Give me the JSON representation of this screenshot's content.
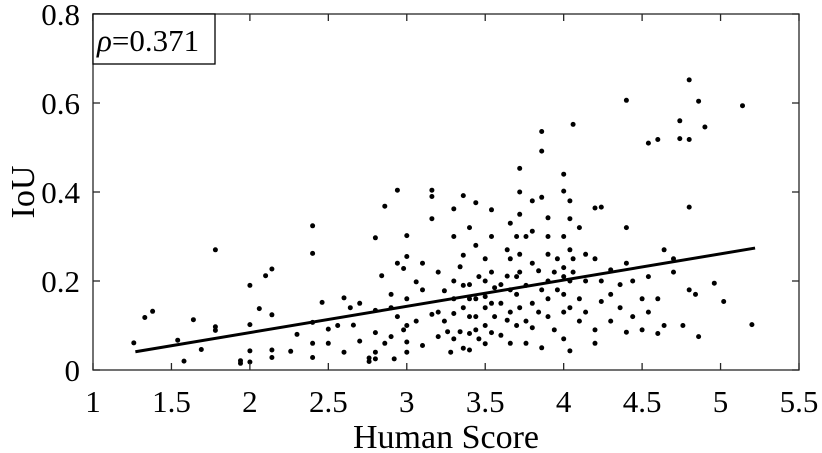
{
  "chart_data": {
    "type": "scatter",
    "title": "",
    "xlabel": "Human Score",
    "ylabel": "IoU",
    "xlim": [
      1,
      5.5
    ],
    "ylim": [
      0,
      0.8
    ],
    "xticks": [
      "1",
      "1.5",
      "2",
      "2.5",
      "3",
      "3.5",
      "4",
      "4.5",
      "5",
      "5.5"
    ],
    "yticks": [
      "0",
      "0.2",
      "0.4",
      "0.6",
      "0.8"
    ],
    "grid": false,
    "annotation": {
      "symbol": "ρ",
      "text": "=0.371"
    },
    "fit_line": {
      "x": [
        1.27,
        5.22
      ],
      "y": [
        0.041,
        0.274
      ]
    },
    "colors": {
      "points": "#000000",
      "line": "#000000"
    },
    "points": [
      [
        1.26,
        0.061
      ],
      [
        1.33,
        0.118
      ],
      [
        1.38,
        0.132
      ],
      [
        1.54,
        0.067
      ],
      [
        1.58,
        0.02
      ],
      [
        1.64,
        0.113
      ],
      [
        1.69,
        0.046
      ],
      [
        1.78,
        0.27
      ],
      [
        1.78,
        0.097
      ],
      [
        1.78,
        0.089
      ],
      [
        1.94,
        0.021
      ],
      [
        1.94,
        0.015
      ],
      [
        2.0,
        0.19
      ],
      [
        2.0,
        0.102
      ],
      [
        2.0,
        0.043
      ],
      [
        2.0,
        0.018
      ],
      [
        2.06,
        0.138
      ],
      [
        2.1,
        0.212
      ],
      [
        2.14,
        0.227
      ],
      [
        2.14,
        0.124
      ],
      [
        2.14,
        0.045
      ],
      [
        2.14,
        0.028
      ],
      [
        2.26,
        0.042
      ],
      [
        2.3,
        0.08
      ],
      [
        2.4,
        0.324
      ],
      [
        2.4,
        0.262
      ],
      [
        2.4,
        0.107
      ],
      [
        2.4,
        0.06
      ],
      [
        2.4,
        0.028
      ],
      [
        2.46,
        0.152
      ],
      [
        2.5,
        0.092
      ],
      [
        2.5,
        0.06
      ],
      [
        2.56,
        0.1
      ],
      [
        2.6,
        0.162
      ],
      [
        2.6,
        0.04
      ],
      [
        2.64,
        0.14
      ],
      [
        2.66,
        0.101
      ],
      [
        2.7,
        0.15
      ],
      [
        2.7,
        0.065
      ],
      [
        2.76,
        0.019
      ],
      [
        2.76,
        0.027
      ],
      [
        2.8,
        0.297
      ],
      [
        2.8,
        0.134
      ],
      [
        2.8,
        0.084
      ],
      [
        2.8,
        0.04
      ],
      [
        2.8,
        0.025
      ],
      [
        2.84,
        0.212
      ],
      [
        2.86,
        0.368
      ],
      [
        2.86,
        0.06
      ],
      [
        2.9,
        0.17
      ],
      [
        2.9,
        0.14
      ],
      [
        2.9,
        0.075
      ],
      [
        2.92,
        0.025
      ],
      [
        2.94,
        0.404
      ],
      [
        2.94,
        0.24
      ],
      [
        2.94,
        0.12
      ],
      [
        2.98,
        0.228
      ],
      [
        2.98,
        0.09
      ],
      [
        3.0,
        0.302
      ],
      [
        3.0,
        0.255
      ],
      [
        3.0,
        0.16
      ],
      [
        3.0,
        0.1
      ],
      [
        3.0,
        0.063
      ],
      [
        3.0,
        0.04
      ],
      [
        3.06,
        0.198
      ],
      [
        3.06,
        0.11
      ],
      [
        3.1,
        0.24
      ],
      [
        3.1,
        0.18
      ],
      [
        3.1,
        0.055
      ],
      [
        3.16,
        0.404
      ],
      [
        3.16,
        0.39
      ],
      [
        3.16,
        0.34
      ],
      [
        3.16,
        0.125
      ],
      [
        3.2,
        0.22
      ],
      [
        3.2,
        0.13
      ],
      [
        3.2,
        0.075
      ],
      [
        3.24,
        0.178
      ],
      [
        3.24,
        0.11
      ],
      [
        3.26,
        0.086
      ],
      [
        3.28,
        0.04
      ],
      [
        3.3,
        0.362
      ],
      [
        3.3,
        0.3
      ],
      [
        3.3,
        0.2
      ],
      [
        3.3,
        0.16
      ],
      [
        3.3,
        0.127
      ],
      [
        3.3,
        0.07
      ],
      [
        3.34,
        0.232
      ],
      [
        3.34,
        0.086
      ],
      [
        3.36,
        0.392
      ],
      [
        3.36,
        0.258
      ],
      [
        3.36,
        0.19
      ],
      [
        3.36,
        0.14
      ],
      [
        3.36,
        0.049
      ],
      [
        3.4,
        0.32
      ],
      [
        3.4,
        0.192
      ],
      [
        3.4,
        0.16
      ],
      [
        3.4,
        0.12
      ],
      [
        3.4,
        0.082
      ],
      [
        3.4,
        0.045
      ],
      [
        3.44,
        0.376
      ],
      [
        3.44,
        0.28
      ],
      [
        3.44,
        0.16
      ],
      [
        3.44,
        0.12
      ],
      [
        3.44,
        0.09
      ],
      [
        3.46,
        0.21
      ],
      [
        3.46,
        0.07
      ],
      [
        3.5,
        0.25
      ],
      [
        3.5,
        0.2
      ],
      [
        3.5,
        0.165
      ],
      [
        3.5,
        0.14
      ],
      [
        3.5,
        0.1
      ],
      [
        3.5,
        0.059
      ],
      [
        3.54,
        0.36
      ],
      [
        3.54,
        0.3
      ],
      [
        3.54,
        0.22
      ],
      [
        3.54,
        0.15
      ],
      [
        3.54,
        0.084
      ],
      [
        3.56,
        0.185
      ],
      [
        3.56,
        0.12
      ],
      [
        3.6,
        0.192
      ],
      [
        3.6,
        0.15
      ],
      [
        3.6,
        0.078
      ],
      [
        3.64,
        0.27
      ],
      [
        3.64,
        0.211
      ],
      [
        3.64,
        0.112
      ],
      [
        3.66,
        0.33
      ],
      [
        3.66,
        0.25
      ],
      [
        3.66,
        0.18
      ],
      [
        3.66,
        0.13
      ],
      [
        3.66,
        0.06
      ],
      [
        3.7,
        0.3
      ],
      [
        3.7,
        0.21
      ],
      [
        3.7,
        0.17
      ],
      [
        3.7,
        0.1
      ],
      [
        3.72,
        0.453
      ],
      [
        3.72,
        0.4
      ],
      [
        3.72,
        0.35
      ],
      [
        3.72,
        0.26
      ],
      [
        3.72,
        0.22
      ],
      [
        3.72,
        0.14
      ],
      [
        3.76,
        0.3
      ],
      [
        3.76,
        0.19
      ],
      [
        3.76,
        0.11
      ],
      [
        3.76,
        0.06
      ],
      [
        3.8,
        0.38
      ],
      [
        3.8,
        0.312
      ],
      [
        3.8,
        0.24
      ],
      [
        3.8,
        0.15
      ],
      [
        3.8,
        0.095
      ],
      [
        3.84,
        0.223
      ],
      [
        3.84,
        0.13
      ],
      [
        3.86,
        0.536
      ],
      [
        3.86,
        0.492
      ],
      [
        3.86,
        0.388
      ],
      [
        3.86,
        0.18
      ],
      [
        3.86,
        0.05
      ],
      [
        3.9,
        0.342
      ],
      [
        3.9,
        0.3
      ],
      [
        3.9,
        0.26
      ],
      [
        3.9,
        0.2
      ],
      [
        3.9,
        0.16
      ],
      [
        3.9,
        0.12
      ],
      [
        3.94,
        0.22
      ],
      [
        3.94,
        0.09
      ],
      [
        3.96,
        0.25
      ],
      [
        3.96,
        0.18
      ],
      [
        4.0,
        0.44
      ],
      [
        4.0,
        0.402
      ],
      [
        4.0,
        0.3
      ],
      [
        4.0,
        0.23
      ],
      [
        4.0,
        0.21
      ],
      [
        4.0,
        0.17
      ],
      [
        4.0,
        0.13
      ],
      [
        4.0,
        0.07
      ],
      [
        4.04,
        0.38
      ],
      [
        4.04,
        0.34
      ],
      [
        4.04,
        0.27
      ],
      [
        4.04,
        0.2
      ],
      [
        4.04,
        0.14
      ],
      [
        4.04,
        0.043
      ],
      [
        4.06,
        0.552
      ],
      [
        4.06,
        0.25
      ],
      [
        4.06,
        0.22
      ],
      [
        4.1,
        0.32
      ],
      [
        4.1,
        0.16
      ],
      [
        4.1,
        0.11
      ],
      [
        4.14,
        0.26
      ],
      [
        4.14,
        0.2
      ],
      [
        4.14,
        0.13
      ],
      [
        4.2,
        0.364
      ],
      [
        4.2,
        0.25
      ],
      [
        4.2,
        0.09
      ],
      [
        4.2,
        0.06
      ],
      [
        4.24,
        0.366
      ],
      [
        4.24,
        0.2
      ],
      [
        4.24,
        0.154
      ],
      [
        4.3,
        0.225
      ],
      [
        4.3,
        0.17
      ],
      [
        4.3,
        0.11
      ],
      [
        4.36,
        0.192
      ],
      [
        4.36,
        0.14
      ],
      [
        4.4,
        0.606
      ],
      [
        4.4,
        0.32
      ],
      [
        4.4,
        0.24
      ],
      [
        4.4,
        0.085
      ],
      [
        4.44,
        0.2
      ],
      [
        4.44,
        0.12
      ],
      [
        4.5,
        0.16
      ],
      [
        4.5,
        0.09
      ],
      [
        4.54,
        0.51
      ],
      [
        4.54,
        0.21
      ],
      [
        4.54,
        0.13
      ],
      [
        4.6,
        0.518
      ],
      [
        4.6,
        0.16
      ],
      [
        4.6,
        0.082
      ],
      [
        4.64,
        0.27
      ],
      [
        4.64,
        0.1
      ],
      [
        4.7,
        0.25
      ],
      [
        4.7,
        0.22
      ],
      [
        4.74,
        0.56
      ],
      [
        4.74,
        0.52
      ],
      [
        4.76,
        0.1
      ],
      [
        4.8,
        0.652
      ],
      [
        4.8,
        0.518
      ],
      [
        4.8,
        0.366
      ],
      [
        4.8,
        0.18
      ],
      [
        4.84,
        0.17
      ],
      [
        4.86,
        0.604
      ],
      [
        4.86,
        0.075
      ],
      [
        4.9,
        0.546
      ],
      [
        4.96,
        0.195
      ],
      [
        5.02,
        0.154
      ],
      [
        5.14,
        0.594
      ],
      [
        5.2,
        0.102
      ]
    ]
  }
}
